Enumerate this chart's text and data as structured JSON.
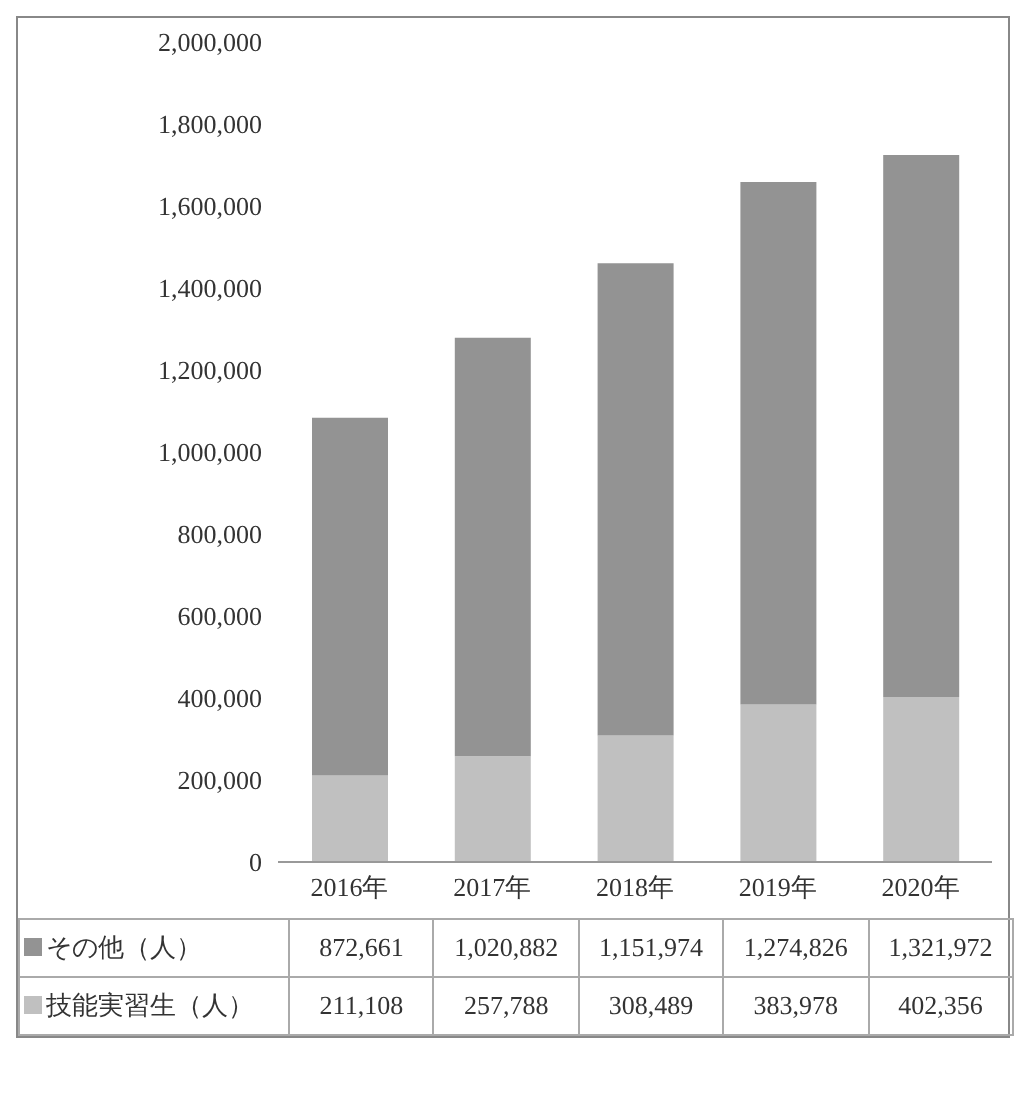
{
  "chart_data": {
    "type": "bar",
    "stacked": true,
    "categories": [
      "2016年",
      "2017年",
      "2018年",
      "2019年",
      "2020年"
    ],
    "series": [
      {
        "name": "技能実習生（人）",
        "color": "#c0c0c0",
        "values": [
          211108,
          257788,
          308489,
          383978,
          402356
        ],
        "value_labels": [
          "211,108",
          "257,788",
          "308,489",
          "383,978",
          "402,356"
        ]
      },
      {
        "name": "その他（人）",
        "color": "#939393",
        "values": [
          872661,
          1020882,
          1151974,
          1274826,
          1321972
        ],
        "value_labels": [
          "872,661",
          "1,020,882",
          "1,151,974",
          "1,274,826",
          "1,321,972"
        ]
      }
    ],
    "ylim": [
      0,
      2000000
    ],
    "yticks": [
      0,
      {
        "value": 200000,
        "label": "200,000"
      },
      {
        "value": 400000,
        "label": "400,000"
      },
      {
        "value": 600000,
        "label": "600,000"
      },
      {
        "value": 800000,
        "label": "800,000"
      },
      {
        "value": 1000000,
        "label": "1,000,000"
      },
      {
        "value": 1200000,
        "label": "1,200,000"
      },
      {
        "value": 1400000,
        "label": "1,400,000"
      },
      {
        "value": 1600000,
        "label": "1,600,000"
      },
      {
        "value": 1800000,
        "label": "1,800,000"
      },
      {
        "value": 2000000,
        "label": "2,000,000"
      }
    ],
    "legend": "bottom"
  }
}
